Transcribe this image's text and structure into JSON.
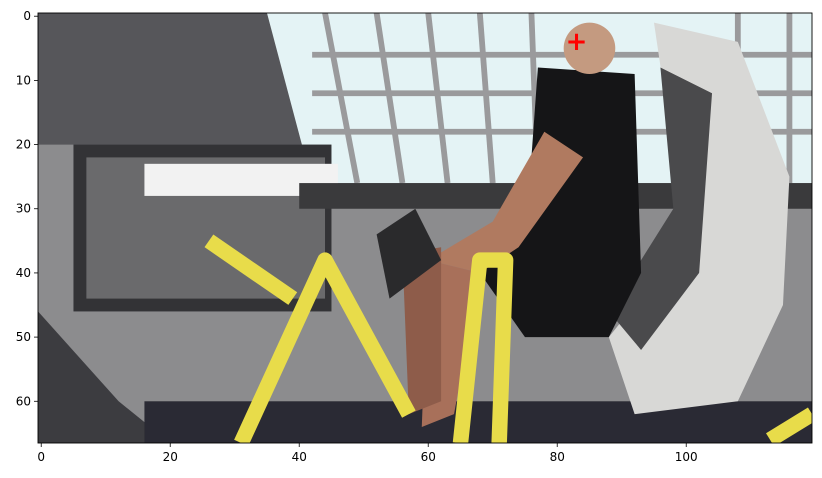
{
  "chart_data": {
    "type": "image",
    "xlim": [
      -0.5,
      119.5
    ],
    "ylim": [
      66.5,
      -0.5
    ],
    "xticks": [
      0,
      20,
      40,
      60,
      80,
      100
    ],
    "yticks": [
      0,
      10,
      20,
      30,
      40,
      50,
      60
    ],
    "marker": {
      "x": 83,
      "y": 4,
      "color": "#ff0000"
    }
  }
}
